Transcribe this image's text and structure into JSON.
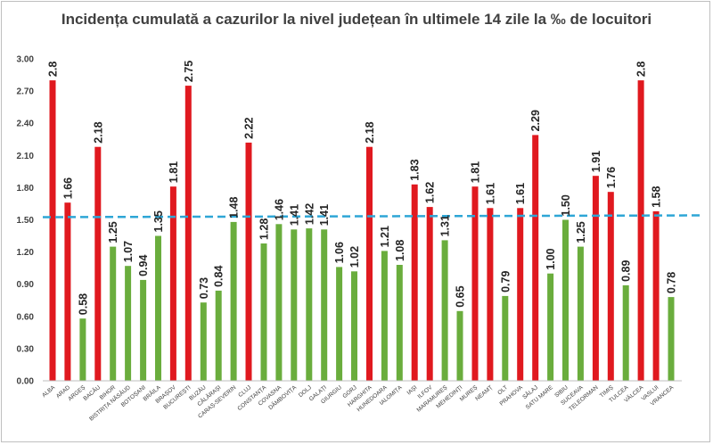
{
  "chart_data": {
    "type": "bar",
    "title": "Incidența cumulată a cazurilor la nivel județean în ultimele 14 zile la ‰ de locuitori",
    "xlabel": "",
    "ylabel": "",
    "ylim": [
      0,
      3
    ],
    "yticks": [
      "0.00",
      "0.30",
      "0.60",
      "0.90",
      "1.20",
      "1.50",
      "1.80",
      "2.10",
      "2.40",
      "2.70",
      "3.00"
    ],
    "threshold": 1.5,
    "grid": false,
    "categories": [
      "ALBA",
      "ARAD",
      "ARGEȘ",
      "BACĂU",
      "BIHOR",
      "BISTRIȚA NĂSĂUD",
      "BOTOȘANI",
      "BRĂILA",
      "BRAȘOV",
      "BUCUREȘTI",
      "BUZĂU",
      "CĂLĂRAȘI",
      "CARAȘ-SEVERIN",
      "CLUJ",
      "CONSTANȚA",
      "COVASNA",
      "DÂMBOVIȚA",
      "DOLJ",
      "GALAȚI",
      "GIURGIU",
      "GORJ",
      "HARGHITA",
      "HUNEDOARA",
      "IALOMIȚA",
      "IAȘI",
      "ILFOV",
      "MARAMUREȘ",
      "MEHEDINȚI",
      "MUREȘ",
      "NEAMȚ",
      "OLT",
      "PRAHOVA",
      "SĂLAJ",
      "SATU MARE",
      "SIBIU",
      "SUCEAVA",
      "TELEORMAN",
      "TIMIȘ",
      "TULCEA",
      "VÂLCEA",
      "VASLUI",
      "VRANCEA"
    ],
    "values": [
      2.8,
      1.66,
      0.58,
      2.18,
      1.25,
      1.07,
      0.94,
      1.35,
      1.81,
      2.75,
      0.73,
      0.84,
      1.48,
      2.22,
      1.28,
      1.46,
      1.41,
      1.42,
      1.41,
      1.06,
      1.02,
      2.18,
      1.21,
      1.08,
      1.83,
      1.62,
      1.31,
      0.65,
      1.81,
      1.61,
      0.79,
      1.61,
      2.29,
      1.0,
      1.5,
      1.25,
      1.91,
      1.76,
      0.89,
      2.8,
      1.58,
      0.78
    ],
    "labels": [
      "2.8",
      "1.66",
      "0.58",
      "2.18",
      "1.25",
      "1.07",
      "0.94",
      "1.35",
      "1.81",
      "2.75",
      "0.73",
      "0.84",
      "1.48",
      "2.22",
      "1.28",
      "1.46",
      "1.41",
      "1.42",
      "1.41",
      "1.06",
      "1.02",
      "2.18",
      "1.21",
      "1.08",
      "1.83",
      "1.62",
      "1.31",
      "0.65",
      "1.81",
      "1.61",
      "0.79",
      "1.61",
      "2.29",
      "1.00",
      "1.50",
      "1.25",
      "1.91",
      "1.76",
      "0.89",
      "2.8",
      "1.58",
      "0.78"
    ],
    "colors": {
      "above": "#e0191f",
      "below": "#6aad3d",
      "threshold_line": "#2ea6d6"
    }
  }
}
